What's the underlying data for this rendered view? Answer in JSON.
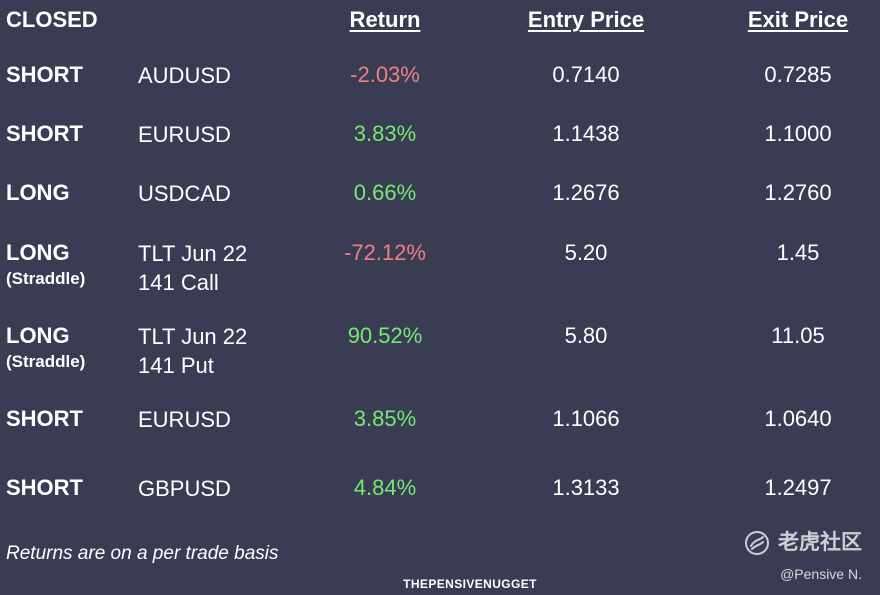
{
  "header": {
    "section": "CLOSED",
    "return_label": "Return",
    "entry_label": "Entry Price",
    "exit_label": "Exit Price"
  },
  "trades": [
    {
      "side": "SHORT",
      "note": "",
      "instrument": "AUDUSD",
      "return": "-2.03%",
      "entry": "0.7140",
      "exit": "0.7285"
    },
    {
      "side": "SHORT",
      "note": "",
      "instrument": "EURUSD",
      "return": "3.83%",
      "entry": "1.1438",
      "exit": "1.1000"
    },
    {
      "side": "LONG",
      "note": "",
      "instrument": "USDCAD",
      "return": "0.66%",
      "entry": "1.2676",
      "exit": "1.2760"
    },
    {
      "side": "LONG",
      "note": "(Straddle)",
      "instrument": "TLT Jun 22\n141 Call",
      "return": "-72.12%",
      "entry": "5.20",
      "exit": "1.45"
    },
    {
      "side": "LONG",
      "note": "(Straddle)",
      "instrument": "TLT Jun 22\n141 Put",
      "return": "90.52%",
      "entry": "5.80",
      "exit": "11.05"
    },
    {
      "side": "SHORT",
      "note": "",
      "instrument": "EURUSD",
      "return": "3.85%",
      "entry": "1.1066",
      "exit": "1.0640"
    },
    {
      "side": "SHORT",
      "note": "",
      "instrument": "GBPUSD",
      "return": "4.84%",
      "entry": "1.3133",
      "exit": "1.2497"
    }
  ],
  "footer": {
    "note": "Returns are on a per trade basis",
    "brand": "THEPENSIVENUGGET",
    "watermark_text": "老虎社区",
    "watermark_handle": "@Pensive N.",
    "watermark_icon": "tiger-community-logo-icon"
  },
  "colors": {
    "background": "#3a3c54",
    "positive": "#74ea73",
    "negative": "#f08080",
    "text": "#ffffff"
  }
}
